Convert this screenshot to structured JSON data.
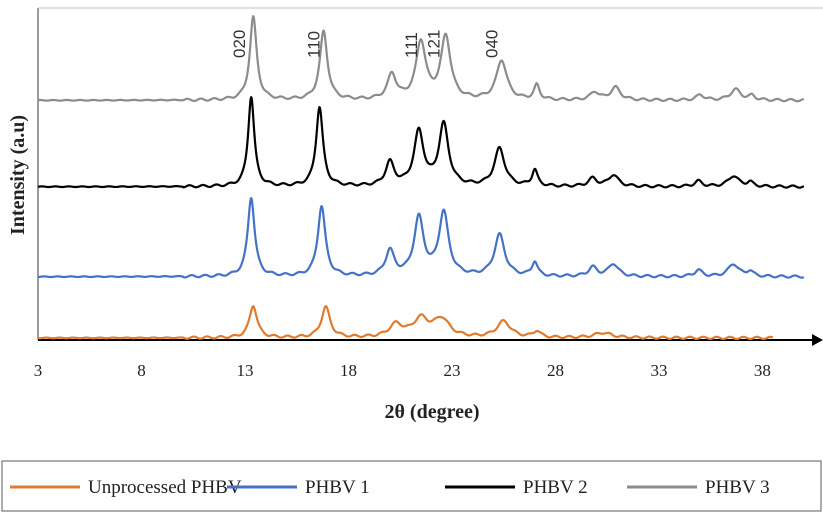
{
  "chart_data": {
    "type": "line",
    "title": "",
    "xlabel": "2θ (degree)",
    "ylabel": "Intensity (a.u)",
    "xlim": [
      3,
      40
    ],
    "xticks": [
      3,
      8,
      13,
      18,
      23,
      28,
      33,
      38
    ],
    "y_scale": "arbitrary units, curves vertically offset (stacked)",
    "grid": false,
    "legend_position": "bottom",
    "peak_labels": [
      {
        "text": "020",
        "x": 13.2
      },
      {
        "text": "110",
        "x": 16.8
      },
      {
        "text": "111",
        "x": 21.5
      },
      {
        "text": "121",
        "x": 22.6
      },
      {
        "text": "040",
        "x": 25.4
      }
    ],
    "series": [
      {
        "name": "Unprocessed PHBV",
        "color": "#E07B2E",
        "x_range": [
          3,
          38.5
        ],
        "baseline": 0.0,
        "peaks": [
          {
            "x": 13.4,
            "h": 0.9,
            "w": 0.22
          },
          {
            "x": 16.9,
            "h": 0.85,
            "w": 0.25
          },
          {
            "x": 20.3,
            "h": 0.35,
            "w": 0.4
          },
          {
            "x": 21.5,
            "h": 0.5,
            "w": 0.45
          },
          {
            "x": 22.5,
            "h": 0.5,
            "w": 0.45
          },
          {
            "x": 25.5,
            "h": 0.45,
            "w": 0.4
          },
          {
            "x": 27.1,
            "h": 0.18,
            "w": 0.2
          },
          {
            "x": 30.3,
            "h": 0.14,
            "w": 0.5
          }
        ]
      },
      {
        "name": "PHBV 1",
        "color": "#4472C4",
        "x_range": [
          3,
          40
        ],
        "baseline": 1.7,
        "peaks": [
          {
            "x": 13.3,
            "h": 2.2,
            "w": 0.2
          },
          {
            "x": 16.7,
            "h": 1.95,
            "w": 0.22
          },
          {
            "x": 20.0,
            "h": 0.7,
            "w": 0.25
          },
          {
            "x": 21.4,
            "h": 1.6,
            "w": 0.28
          },
          {
            "x": 22.6,
            "h": 1.75,
            "w": 0.28
          },
          {
            "x": 25.3,
            "h": 1.15,
            "w": 0.3
          },
          {
            "x": 27.0,
            "h": 0.4,
            "w": 0.16
          },
          {
            "x": 29.8,
            "h": 0.25,
            "w": 0.25
          },
          {
            "x": 30.8,
            "h": 0.35,
            "w": 0.28
          },
          {
            "x": 34.9,
            "h": 0.18,
            "w": 0.22
          },
          {
            "x": 36.6,
            "h": 0.35,
            "w": 0.3
          },
          {
            "x": 37.4,
            "h": 0.15,
            "w": 0.18
          }
        ]
      },
      {
        "name": "PHBV 2",
        "color": "#000000",
        "x_range": [
          3,
          40
        ],
        "baseline": 4.2,
        "peaks": [
          {
            "x": 13.3,
            "h": 2.5,
            "w": 0.18
          },
          {
            "x": 16.6,
            "h": 2.2,
            "w": 0.2
          },
          {
            "x": 20.0,
            "h": 0.65,
            "w": 0.25
          },
          {
            "x": 21.4,
            "h": 1.5,
            "w": 0.28
          },
          {
            "x": 22.6,
            "h": 1.7,
            "w": 0.28
          },
          {
            "x": 25.3,
            "h": 1.05,
            "w": 0.3
          },
          {
            "x": 27.0,
            "h": 0.45,
            "w": 0.16
          },
          {
            "x": 29.8,
            "h": 0.22,
            "w": 0.25
          },
          {
            "x": 30.8,
            "h": 0.32,
            "w": 0.28
          },
          {
            "x": 34.9,
            "h": 0.15,
            "w": 0.22
          },
          {
            "x": 36.6,
            "h": 0.3,
            "w": 0.3
          },
          {
            "x": 37.4,
            "h": 0.12,
            "w": 0.18
          }
        ]
      },
      {
        "name": "PHBV 3",
        "color": "#8C8C8C",
        "x_range": [
          3,
          40
        ],
        "baseline": 6.6,
        "peaks": [
          {
            "x": 13.4,
            "h": 2.3,
            "w": 0.2
          },
          {
            "x": 16.8,
            "h": 1.9,
            "w": 0.22
          },
          {
            "x": 20.1,
            "h": 0.7,
            "w": 0.25
          },
          {
            "x": 21.5,
            "h": 1.6,
            "w": 0.28
          },
          {
            "x": 22.7,
            "h": 1.75,
            "w": 0.28
          },
          {
            "x": 25.4,
            "h": 1.1,
            "w": 0.3
          },
          {
            "x": 27.1,
            "h": 0.4,
            "w": 0.16
          },
          {
            "x": 29.9,
            "h": 0.22,
            "w": 0.25
          },
          {
            "x": 30.9,
            "h": 0.35,
            "w": 0.28
          },
          {
            "x": 35.0,
            "h": 0.15,
            "w": 0.22
          },
          {
            "x": 36.7,
            "h": 0.3,
            "w": 0.3
          },
          {
            "x": 37.5,
            "h": 0.12,
            "w": 0.18
          }
        ]
      }
    ]
  }
}
